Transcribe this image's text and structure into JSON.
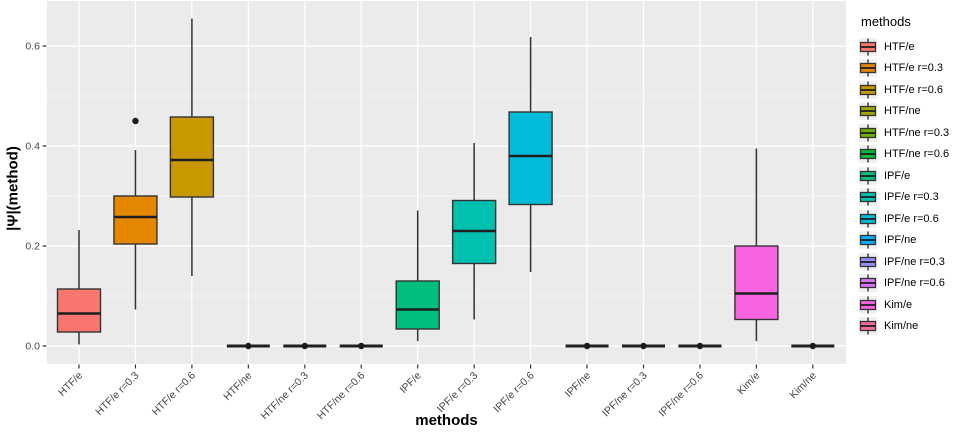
{
  "chart_data": {
    "type": "boxplot",
    "title": "",
    "xlabel": "methods",
    "ylabel": "|Ψ|(method)",
    "legend_title": "methods",
    "legend_position": "right",
    "y_axis": {
      "ticks": [
        0.0,
        0.2,
        0.4,
        0.6
      ],
      "minor_ticks": [
        0.1,
        0.3,
        0.5
      ],
      "lim": [
        -0.035,
        0.69
      ]
    },
    "grid": "on",
    "colors": {
      "panel_background": "#EBEBEB",
      "grid_major": "#FFFFFF",
      "grid_minor": "#F7F7F7",
      "box_stroke": "#333333",
      "tick_label": "#454545",
      "outlier": "#1A1A1A"
    },
    "categories": [
      "HTF/e",
      "HTF/e r=0.3",
      "HTF/e r=0.6",
      "HTF/ne",
      "HTF/ne r=0.3",
      "HTF/ne r=0.6",
      "IPF/e",
      "IPF/e r=0.3",
      "IPF/e r=0.6",
      "IPF/ne",
      "IPF/ne r=0.3",
      "IPF/ne r=0.6",
      "Kim/e",
      "Kim/ne"
    ],
    "series": [
      {
        "label": "HTF/e",
        "color": "#F8766D",
        "flat": false,
        "low": 0.003,
        "q1": 0.028,
        "median": 0.065,
        "q3": 0.114,
        "high": 0.232,
        "outliers": []
      },
      {
        "label": "HTF/e r=0.3",
        "color": "#E58700",
        "flat": false,
        "low": 0.073,
        "q1": 0.204,
        "median": 0.258,
        "q3": 0.3,
        "high": 0.392,
        "outliers": [
          0.45
        ]
      },
      {
        "label": "HTF/e r=0.6",
        "color": "#C99800",
        "flat": false,
        "low": 0.14,
        "q1": 0.298,
        "median": 0.372,
        "q3": 0.458,
        "high": 0.655,
        "outliers": []
      },
      {
        "label": "HTF/ne",
        "color": "#A3A500",
        "flat": true,
        "low": 0,
        "q1": 0,
        "median": 0,
        "q3": 0,
        "high": 0,
        "outliers": [
          0
        ]
      },
      {
        "label": "HTF/ne r=0.3",
        "color": "#6BB100",
        "flat": true,
        "low": 0,
        "q1": 0,
        "median": 0,
        "q3": 0,
        "high": 0,
        "outliers": [
          0
        ]
      },
      {
        "label": "HTF/ne r=0.6",
        "color": "#00BA38",
        "flat": true,
        "low": 0,
        "q1": 0,
        "median": 0,
        "q3": 0,
        "high": 0,
        "outliers": [
          0
        ]
      },
      {
        "label": "IPF/e",
        "color": "#00BF7D",
        "flat": false,
        "low": 0.01,
        "q1": 0.034,
        "median": 0.073,
        "q3": 0.13,
        "high": 0.271,
        "outliers": []
      },
      {
        "label": "IPF/e r=0.3",
        "color": "#00C0AF",
        "flat": false,
        "low": 0.053,
        "q1": 0.165,
        "median": 0.23,
        "q3": 0.291,
        "high": 0.406,
        "outliers": []
      },
      {
        "label": "IPF/e r=0.6",
        "color": "#00BCD8",
        "flat": false,
        "low": 0.148,
        "q1": 0.283,
        "median": 0.38,
        "q3": 0.468,
        "high": 0.618,
        "outliers": []
      },
      {
        "label": "IPF/ne",
        "color": "#00B0F6",
        "flat": true,
        "low": 0,
        "q1": 0,
        "median": 0,
        "q3": 0,
        "high": 0,
        "outliers": [
          0
        ]
      },
      {
        "label": "IPF/ne r=0.3",
        "color": "#9590FF",
        "flat": true,
        "low": 0,
        "q1": 0,
        "median": 0,
        "q3": 0,
        "high": 0,
        "outliers": [
          0
        ]
      },
      {
        "label": "IPF/ne r=0.6",
        "color": "#D973FC",
        "flat": true,
        "low": 0,
        "q1": 0,
        "median": 0,
        "q3": 0,
        "high": 0,
        "outliers": [
          0
        ]
      },
      {
        "label": "Kim/e",
        "color": "#F763E1",
        "flat": false,
        "low": 0.01,
        "q1": 0.053,
        "median": 0.105,
        "q3": 0.2,
        "high": 0.395,
        "outliers": []
      },
      {
        "label": "Kim/ne",
        "color": "#FF689E",
        "flat": true,
        "low": 0,
        "q1": 0,
        "median": 0,
        "q3": 0,
        "high": 0,
        "outliers": [
          0
        ]
      }
    ]
  }
}
